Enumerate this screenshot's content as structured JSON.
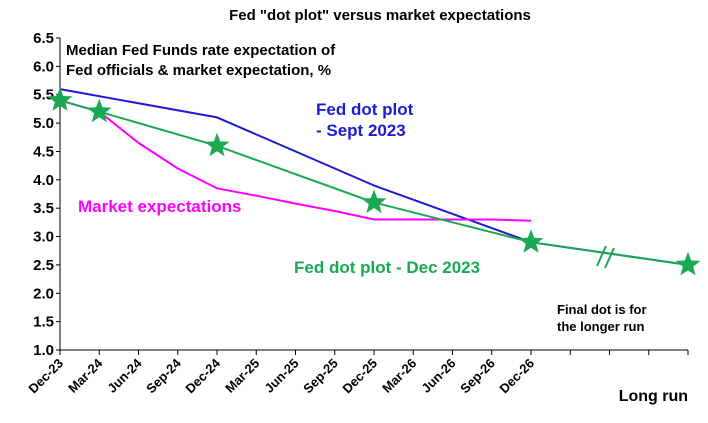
{
  "chart_data": {
    "type": "line",
    "title": "Fed \"dot plot\" versus market expectations",
    "categories": [
      "Dec-23",
      "Mar-24",
      "Jun-24",
      "Sep-24",
      "Dec-24",
      "Mar-25",
      "Jun-25",
      "Sep-25",
      "Dec-25",
      "Mar-26",
      "Jun-26",
      "Sep-26",
      "Dec-26",
      null,
      null,
      null,
      "Long run"
    ],
    "ylim": [
      1,
      6.5
    ],
    "yticks": [
      {
        "value": 1,
        "label": "1.0"
      },
      1.5,
      {
        "value": 2,
        "label": "2.0"
      },
      2.5,
      {
        "value": 3,
        "label": "3.0"
      },
      3.5,
      {
        "value": 4,
        "label": "4.0"
      },
      4.5,
      {
        "value": 5,
        "label": "5.0"
      },
      5.5,
      {
        "value": 6,
        "label": "6.0"
      },
      6.5
    ],
    "series": [
      {
        "name": "Fed dot plot - Sept 2023",
        "color": "#1c1cd4",
        "marker": "none",
        "x": [
          "Dec-23",
          "Dec-24",
          "Dec-25",
          "Dec-26",
          "Long run"
        ],
        "values": [
          5.6,
          5.1,
          3.9,
          2.9,
          2.5
        ]
      },
      {
        "name": "Market expectations",
        "color": "#ff00ff",
        "marker": "none",
        "x": [
          "Dec-23",
          "Mar-24",
          "Jun-24",
          "Sep-24",
          "Dec-24",
          "Mar-25",
          "Jun-25",
          "Sep-25",
          "Dec-25",
          "Mar-26",
          "Jun-26",
          "Sep-26",
          "Dec-26"
        ],
        "values": [
          5.4,
          5.2,
          4.65,
          4.2,
          3.85,
          3.72,
          3.58,
          3.45,
          3.3,
          3.3,
          3.3,
          3.3,
          3.28
        ]
      },
      {
        "name": "Fed dot plot - Dec 2023",
        "color": "#1ba852",
        "marker": "star",
        "x": [
          "Dec-23",
          "Mar-24",
          "Dec-24",
          "Dec-25",
          "Dec-26",
          "Long run"
        ],
        "values": [
          5.4,
          5.2,
          4.6,
          3.6,
          2.9,
          2.5
        ]
      }
    ],
    "annotations": [
      {
        "lines": [
          "Median Fed Funds rate expectation of",
          "Fed officials & market expectation, %"
        ]
      },
      {
        "lines": [
          "Final dot is for",
          "the longer run"
        ]
      }
    ]
  }
}
